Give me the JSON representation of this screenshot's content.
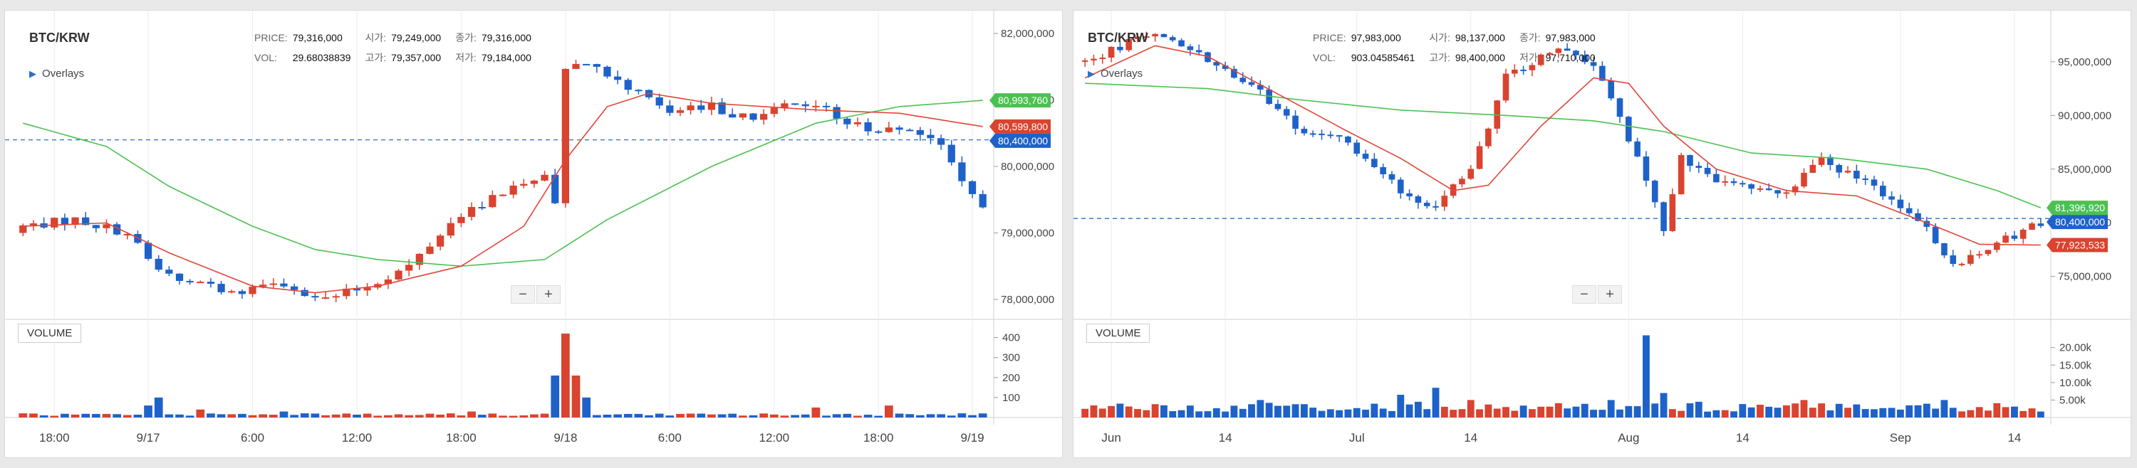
{
  "panels": [
    {
      "title": "BTC/KRW",
      "overlays_label": "Overlays",
      "info": {
        "price_label": "PRICE:",
        "price": "79,316,000",
        "vol_label": "VOL:",
        "vol": "29.68038839",
        "open_label": "시가:",
        "open": "79,249,000",
        "high_label": "고가:",
        "high": "79,357,000",
        "close_label": "종가:",
        "close": "79,316,000",
        "low_label": "저가:",
        "low": "79,184,000"
      },
      "volume_label": "VOLUME",
      "zoom_out": "−",
      "zoom_in": "+"
    },
    {
      "title": "BTC/KRW",
      "overlays_label": "Overlays",
      "info": {
        "price_label": "PRICE:",
        "price": "97,983,000",
        "vol_label": "VOL:",
        "vol": "903.04585461",
        "open_label": "시가:",
        "open": "98,137,000",
        "high_label": "고가:",
        "high": "98,400,000",
        "close_label": "종가:",
        "close": "97,983,000",
        "low_label": "저가:",
        "low": "97,710,000"
      },
      "volume_label": "VOLUME",
      "zoom_out": "−",
      "zoom_in": "+"
    }
  ],
  "chart_data": [
    {
      "type": "candlestick",
      "title": "BTC/KRW",
      "interval": "intraday",
      "ylim": [
        77700000,
        82300000
      ],
      "y_ticks": [
        78000000,
        79000000,
        80000000,
        81000000,
        82000000
      ],
      "y_tick_labels": [
        "78,000,000",
        "79,000,000",
        "80,000,000",
        "81,000,000",
        "82,000,000"
      ],
      "x_tick_labels": [
        "18:00",
        "9/17",
        "6:00",
        "12:00",
        "18:00",
        "9/18",
        "6:00",
        "12:00",
        "18:00",
        "9/19"
      ],
      "x_tick_index": [
        3,
        12,
        22,
        32,
        42,
        52,
        62,
        72,
        82,
        91
      ],
      "n_candles": 93,
      "open_start": 79000000,
      "close_path": [
        [
          0,
          79100000
        ],
        [
          5,
          79200000
        ],
        [
          10,
          79000000
        ],
        [
          13,
          78400000
        ],
        [
          20,
          78100000
        ],
        [
          24,
          78300000
        ],
        [
          29,
          78000000
        ],
        [
          33,
          78200000
        ],
        [
          37,
          78500000
        ],
        [
          42,
          79300000
        ],
        [
          46,
          79600000
        ],
        [
          50,
          79900000
        ],
        [
          51,
          79500000
        ],
        [
          52,
          81500000
        ],
        [
          54,
          81600000
        ],
        [
          58,
          81200000
        ],
        [
          60,
          81100000
        ],
        [
          62,
          80800000
        ],
        [
          66,
          80900000
        ],
        [
          70,
          80700000
        ],
        [
          73,
          81000000
        ],
        [
          76,
          80900000
        ],
        [
          79,
          80700000
        ],
        [
          82,
          80500000
        ],
        [
          85,
          80600000
        ],
        [
          88,
          80300000
        ],
        [
          92,
          79316000
        ]
      ],
      "sma_short_path": [
        [
          0,
          79100000
        ],
        [
          8,
          79150000
        ],
        [
          14,
          78700000
        ],
        [
          22,
          78200000
        ],
        [
          28,
          78100000
        ],
        [
          34,
          78200000
        ],
        [
          42,
          78500000
        ],
        [
          48,
          79100000
        ],
        [
          52,
          80100000
        ],
        [
          56,
          80900000
        ],
        [
          60,
          81100000
        ],
        [
          66,
          80950000
        ],
        [
          76,
          80850000
        ],
        [
          84,
          80800000
        ],
        [
          92,
          80599800
        ]
      ],
      "sma_long_path": [
        [
          0,
          80650000
        ],
        [
          8,
          80300000
        ],
        [
          14,
          79700000
        ],
        [
          22,
          79100000
        ],
        [
          28,
          78750000
        ],
        [
          34,
          78600000
        ],
        [
          42,
          78500000
        ],
        [
          50,
          78600000
        ],
        [
          56,
          79200000
        ],
        [
          66,
          80000000
        ],
        [
          76,
          80650000
        ],
        [
          84,
          80900000
        ],
        [
          92,
          80993760
        ]
      ],
      "badges": [
        {
          "value": 80993760,
          "label": "80,993,760",
          "color": "#4cc151"
        },
        {
          "value": 80599800,
          "label": "80,599,800",
          "color": "#d9432f"
        },
        {
          "value": 80400000,
          "label": "80,400,000",
          "color": "#1e62c9"
        }
      ],
      "reference_price": 80400000,
      "reference_label": "80,400,000",
      "volume_max": 420,
      "volume_ticks": [
        100,
        200,
        300,
        400
      ],
      "volume_tick_labels": [
        "100",
        "200",
        "300",
        "400"
      ],
      "volume_baseline": 14,
      "volume_spikes": [
        [
          12,
          60
        ],
        [
          13,
          100
        ],
        [
          17,
          40
        ],
        [
          25,
          30
        ],
        [
          43,
          30
        ],
        [
          51,
          210
        ],
        [
          52,
          420
        ],
        [
          53,
          210
        ],
        [
          54,
          100
        ],
        [
          76,
          50
        ],
        [
          83,
          60
        ]
      ],
      "colors": {
        "up": "#d9432f",
        "down": "#1e62c9",
        "sma_short": "#e0463a",
        "sma_long": "#4cc151"
      }
    },
    {
      "type": "candlestick",
      "title": "BTC/KRW",
      "interval": "daily",
      "ylim": [
        71000000,
        99500000
      ],
      "y_ticks": [
        75000000,
        80000000,
        85000000,
        90000000,
        95000000
      ],
      "y_tick_labels": [
        "75,000,000",
        "80,000,000",
        "85,000,000",
        "90,000,000",
        "95,000,000"
      ],
      "x_tick_labels": [
        "Jun",
        "14",
        "Jul",
        "14",
        "Aug",
        "14",
        "Sep",
        "14"
      ],
      "x_tick_index": [
        3,
        16,
        31,
        44,
        62,
        75,
        93,
        106
      ],
      "n_candles": 110,
      "open_start": 95000000,
      "close_path": [
        [
          0,
          95000000
        ],
        [
          8,
          98000000
        ],
        [
          12,
          96000000
        ],
        [
          18,
          93500000
        ],
        [
          24,
          89000000
        ],
        [
          30,
          87500000
        ],
        [
          36,
          83000000
        ],
        [
          40,
          81500000
        ],
        [
          44,
          85000000
        ],
        [
          46,
          89000000
        ],
        [
          48,
          93500000
        ],
        [
          54,
          96500000
        ],
        [
          58,
          95000000
        ],
        [
          64,
          84000000
        ],
        [
          66,
          79000000
        ],
        [
          68,
          86000000
        ],
        [
          72,
          84000000
        ],
        [
          76,
          83000000
        ],
        [
          80,
          82500000
        ],
        [
          84,
          86000000
        ],
        [
          88,
          84000000
        ],
        [
          92,
          82500000
        ],
        [
          94,
          81000000
        ],
        [
          96,
          79500000
        ],
        [
          99,
          76000000
        ],
        [
          102,
          77500000
        ],
        [
          105,
          78500000
        ],
        [
          109,
          80000000
        ]
      ],
      "sma_short_path": [
        [
          0,
          93500000
        ],
        [
          8,
          96500000
        ],
        [
          14,
          95500000
        ],
        [
          22,
          92000000
        ],
        [
          30,
          88500000
        ],
        [
          36,
          86000000
        ],
        [
          42,
          83000000
        ],
        [
          46,
          83500000
        ],
        [
          52,
          89000000
        ],
        [
          58,
          93500000
        ],
        [
          62,
          93000000
        ],
        [
          66,
          89000000
        ],
        [
          72,
          85000000
        ],
        [
          80,
          83000000
        ],
        [
          88,
          82500000
        ],
        [
          96,
          80000000
        ],
        [
          102,
          78000000
        ],
        [
          109,
          77923533
        ]
      ],
      "sma_long_path": [
        [
          0,
          93000000
        ],
        [
          14,
          92500000
        ],
        [
          24,
          91500000
        ],
        [
          36,
          90500000
        ],
        [
          48,
          90000000
        ],
        [
          58,
          89500000
        ],
        [
          66,
          88500000
        ],
        [
          76,
          86500000
        ],
        [
          86,
          86000000
        ],
        [
          96,
          85000000
        ],
        [
          104,
          83000000
        ],
        [
          109,
          81396920
        ]
      ],
      "badges": [
        {
          "value": 81396920,
          "label": "81,396,920",
          "color": "#4cc151"
        },
        {
          "value": 80400000,
          "label": "80,400,000",
          "color": "#1e62c9"
        },
        {
          "value": 77923533,
          "label": "77,923,533",
          "color": "#d9432f"
        }
      ],
      "reference_price": 80400000,
      "reference_label": "80,400,000",
      "volume_max": 24000,
      "volume_ticks": [
        5000,
        10000,
        15000,
        20000
      ],
      "volume_tick_labels": [
        "5.00k",
        "10.00k",
        "15.00k",
        "20.00k"
      ],
      "volume_baseline": 2800,
      "volume_spikes": [
        [
          20,
          5000
        ],
        [
          36,
          6500
        ],
        [
          38,
          4500
        ],
        [
          40,
          8500
        ],
        [
          44,
          5000
        ],
        [
          60,
          5000
        ],
        [
          64,
          23500
        ],
        [
          66,
          7000
        ],
        [
          70,
          4500
        ],
        [
          82,
          5000
        ],
        [
          98,
          5000
        ]
      ],
      "colors": {
        "up": "#d9432f",
        "down": "#1e62c9",
        "sma_short": "#e0463a",
        "sma_long": "#4cc151"
      }
    }
  ]
}
